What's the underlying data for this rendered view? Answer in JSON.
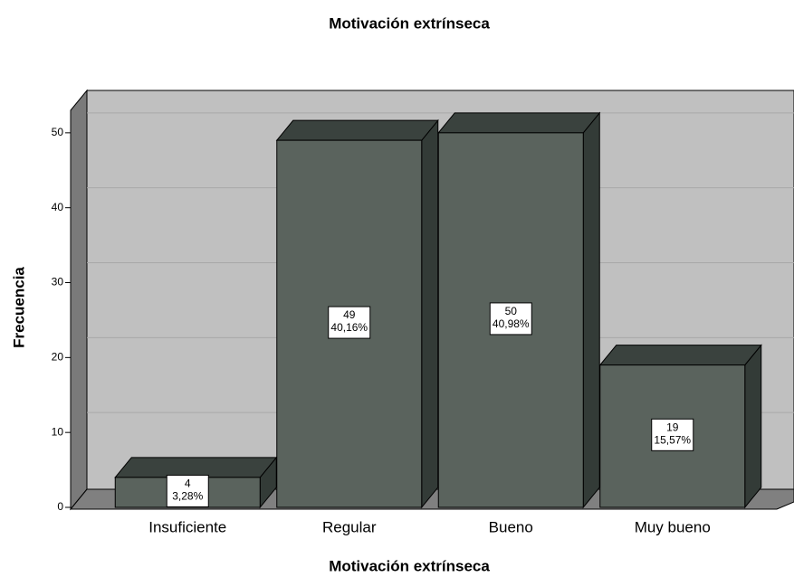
{
  "chart_data": {
    "type": "bar3d",
    "title": "Motivación extrínseca",
    "x_label": "Motivación extrínseca",
    "y_label": "Frecuencia",
    "categories": [
      "Insuficiente",
      "Regular",
      "Bueno",
      "Muy bueno"
    ],
    "values": [
      4,
      49,
      50,
      19
    ],
    "percent_labels": [
      "3,28%",
      "40,16%",
      "40,98%",
      "15,57%"
    ],
    "color": "#5a635d",
    "ylim": [
      0,
      53
    ],
    "yticks": [
      0,
      10,
      20,
      30,
      40,
      50
    ],
    "grid": true
  }
}
